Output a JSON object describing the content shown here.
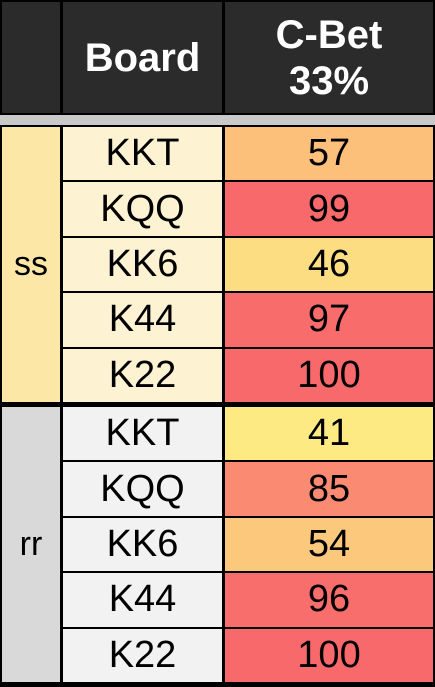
{
  "header": {
    "col1": "",
    "board": "Board",
    "cbet_line1": "C-Bet",
    "cbet_line2": "33%"
  },
  "groups": [
    {
      "label": "ss",
      "label_bg": "#fde7a6",
      "board_bg": "#fdf2d2",
      "rows": [
        {
          "board": "KKT",
          "value": "57",
          "color": "#fcc07a"
        },
        {
          "board": "KQQ",
          "value": "99",
          "color": "#f8696b"
        },
        {
          "board": "KK6",
          "value": "46",
          "color": "#fddd82"
        },
        {
          "board": "K44",
          "value": "97",
          "color": "#f86d6c"
        },
        {
          "board": "K22",
          "value": "100",
          "color": "#f8696b"
        }
      ]
    },
    {
      "label": "rr",
      "label_bg": "#d9d9d9",
      "board_bg": "#f2f2f2",
      "rows": [
        {
          "board": "KKT",
          "value": "41",
          "color": "#feea83"
        },
        {
          "board": "KQQ",
          "value": "85",
          "color": "#fa8b72"
        },
        {
          "board": "KK6",
          "value": "54",
          "color": "#fcc87c"
        },
        {
          "board": "K44",
          "value": "96",
          "color": "#f86e6c"
        },
        {
          "board": "K22",
          "value": "100",
          "color": "#f8696b"
        }
      ]
    }
  ]
}
